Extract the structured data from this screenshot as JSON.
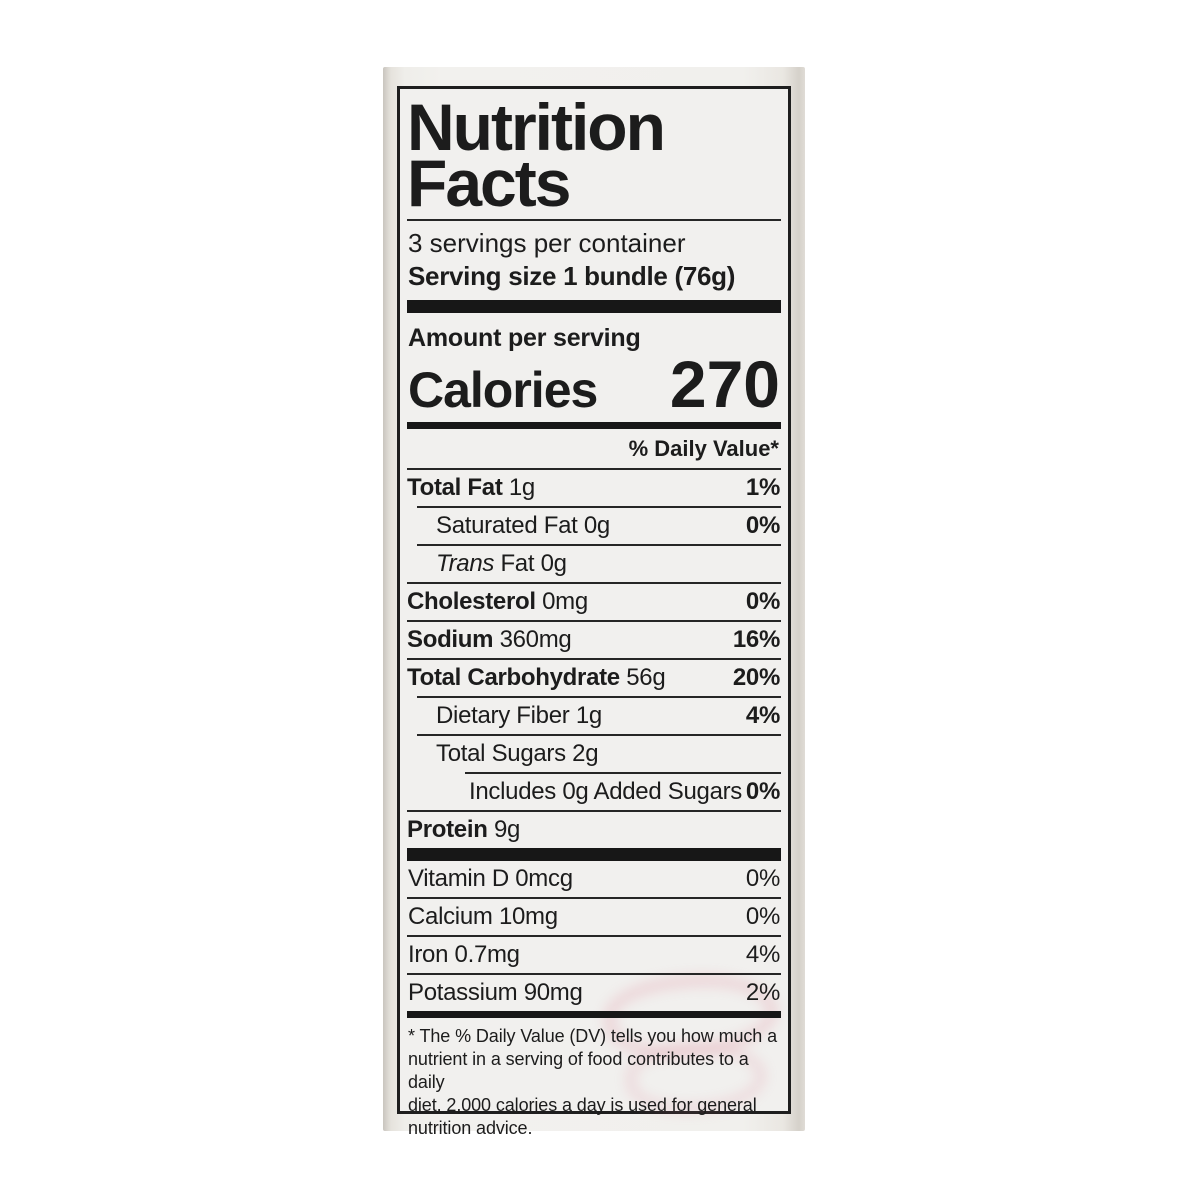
{
  "colors": {
    "ink": "#1c1c1c",
    "label_background": "#f1f0ee",
    "package_background": "#ebe8e3",
    "ghost_print_pink": "#db7a8e"
  },
  "label": {
    "title_line1": "Nutrition",
    "title_line2": "Facts",
    "servings_per_container": "3 servings per container",
    "serving_size_label": "Serving size",
    "serving_size_value": "1 bundle (76g)",
    "amount_per_serving": "Amount per serving",
    "calories_label": "Calories",
    "calories_value": "270",
    "daily_value_header": "% Daily Value*",
    "nutrients": [
      {
        "strong": "Total Fat",
        "em": "",
        "text": " 1g",
        "dv": "1%",
        "indent": 0
      },
      {
        "strong": "",
        "em": "",
        "text": "Saturated Fat 0g",
        "dv": "0%",
        "indent": 1
      },
      {
        "strong": "",
        "em": "Trans",
        "text": " Fat 0g",
        "dv": "",
        "indent": 1
      },
      {
        "strong": "Cholesterol",
        "em": "",
        "text": " 0mg",
        "dv": "0%",
        "indent": 0
      },
      {
        "strong": "Sodium",
        "em": "",
        "text": " 360mg",
        "dv": "16%",
        "indent": 0
      },
      {
        "strong": "Total Carbohydrate",
        "em": "",
        "text": " 56g",
        "dv": "20%",
        "indent": 0
      },
      {
        "strong": "",
        "em": "",
        "text": "Dietary Fiber 1g",
        "dv": "4%",
        "indent": 1
      },
      {
        "strong": "",
        "em": "",
        "text": "Total Sugars 2g",
        "dv": "",
        "indent": 1
      },
      {
        "strong": "",
        "em": "",
        "text": "Includes 0g Added Sugars",
        "dv": "0%",
        "indent": 2
      },
      {
        "strong": "Protein",
        "em": "",
        "text": " 9g",
        "dv": "",
        "indent": 0
      }
    ],
    "vitamins": [
      {
        "text": "Vitamin D 0mcg",
        "dv": "0%"
      },
      {
        "text": "Calcium 10mg",
        "dv": "0%"
      },
      {
        "text": "Iron 0.7mg",
        "dv": "4%"
      },
      {
        "text": "Potassium 90mg",
        "dv": "2%"
      }
    ],
    "footnote_lines": [
      "* The % Daily Value (DV) tells you how much a",
      "nutrient in a serving of food contributes to a daily",
      "diet. 2,000 calories a day is used for general",
      "nutrition advice."
    ]
  }
}
